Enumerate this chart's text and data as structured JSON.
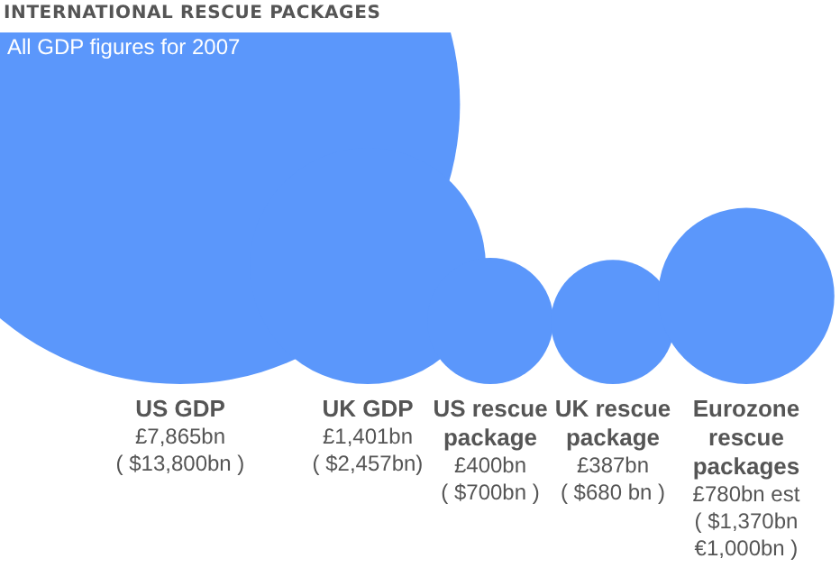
{
  "chart_data": {
    "type": "other",
    "title": "INTERNATIONAL RESCUE PACKAGES",
    "subtitle": "All GDP figures for 2007",
    "categories": [
      "US GDP",
      "UK GDP",
      "US rescue package",
      "UK rescue package",
      "Eurozone rescue packages"
    ],
    "values": [
      7865,
      1401,
      400,
      387,
      780
    ],
    "value_labels": [
      "£7,865bn",
      "£1,401bn",
      "£400bn",
      "£387bn",
      "£780bn est"
    ],
    "annotations": [
      "( $13,800bn )",
      "( $2,457bn)",
      "( $700bn )",
      "( $680 bn )",
      "( $1,370bn\n€1,000bn )"
    ],
    "color": "#5b97fb"
  }
}
